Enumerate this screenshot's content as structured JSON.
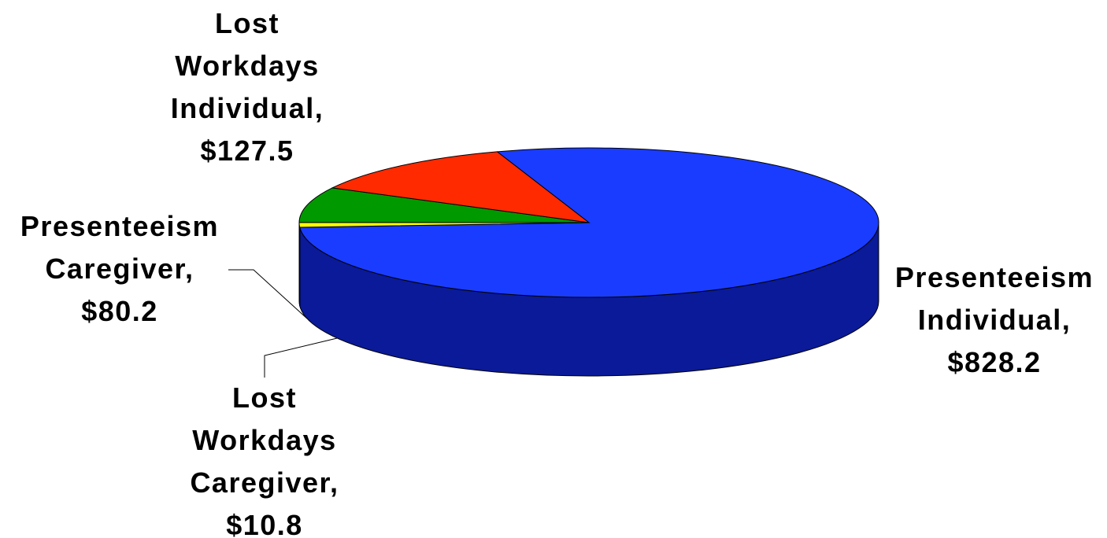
{
  "colors": {
    "background": "#ffffff",
    "label_text": "#000000",
    "leader_line": "#000000"
  },
  "chart_data": {
    "type": "pie",
    "style": "3d",
    "title": "",
    "slices": [
      {
        "key": "presenteeism-individual",
        "label_lines": [
          "Presenteeism",
          "Individual,",
          "$828.2"
        ],
        "value": 828.2,
        "top_color": "#1a3cff",
        "side_color": "#0a1a99"
      },
      {
        "key": "lost-workdays-caregiver",
        "label_lines": [
          "Lost",
          "Workdays",
          "Caregiver,",
          "$10.8"
        ],
        "value": 10.8,
        "top_color": "#ffff00",
        "side_color": "#999900"
      },
      {
        "key": "presenteeism-caregiver",
        "label_lines": [
          "Presenteeism",
          "Caregiver,",
          "$80.2"
        ],
        "value": 80.2,
        "top_color": "#009900",
        "side_color": "#004d00"
      },
      {
        "key": "lost-workdays-individual",
        "label_lines": [
          "Lost",
          "Workdays",
          "Individual,",
          "$127.5"
        ],
        "value": 127.5,
        "top_color": "#ff2a00",
        "side_color": "#991a00"
      }
    ],
    "labels_outside": true,
    "legend": "none"
  }
}
